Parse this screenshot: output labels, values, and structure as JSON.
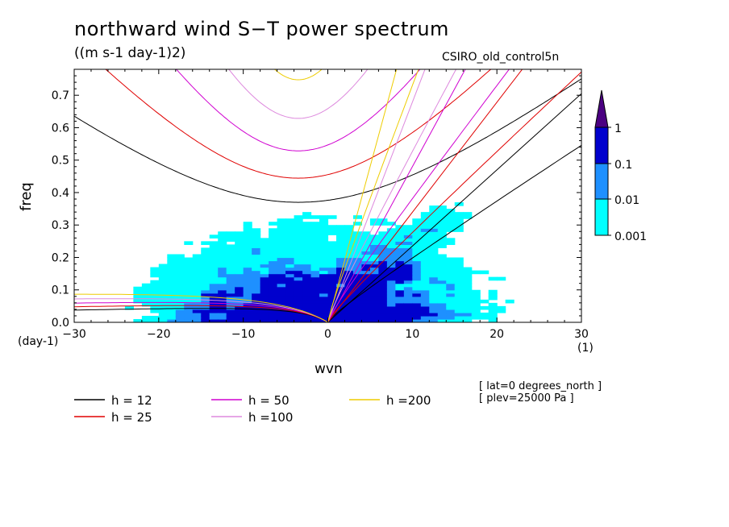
{
  "chart_data": {
    "type": "heatmap",
    "title": "northward wind S−T power spectrum",
    "subtitle": "((m s-1 day-1)2)",
    "run_name": "CSIRO_old_control5n",
    "xlabel": "wvn",
    "ylabel": "freq",
    "x_unit": "(day-1)",
    "y_unit": "(1)",
    "xlim": [
      -30,
      30
    ],
    "ylim": [
      0,
      0.78
    ],
    "x_ticks": [
      "−30",
      "−20",
      "−10",
      "0",
      "10",
      "20",
      "30"
    ],
    "x_tick_values": [
      -30,
      -20,
      -10,
      0,
      10,
      20,
      30
    ],
    "y_ticks": [
      "0.0",
      "0.1",
      "0.2",
      "0.3",
      "0.4",
      "0.5",
      "0.6",
      "0.7"
    ],
    "y_tick_values": [
      0,
      0.1,
      0.2,
      0.3,
      0.4,
      0.5,
      0.6,
      0.7
    ],
    "colorbar": {
      "levels": [
        "0.001",
        "0.01",
        "0.1",
        "1"
      ],
      "colors": [
        "#00ffff",
        "#1e90ff",
        "#0000cd",
        "#4b0082"
      ]
    },
    "dispersion_curves": [
      {
        "label": "h = 12",
        "h": 12,
        "color": "#000000"
      },
      {
        "label": "h = 25",
        "h": 25,
        "color": "#e00000"
      },
      {
        "label": "h = 50",
        "h": 50,
        "color": "#d000d0"
      },
      {
        "label": "h =100",
        "h": 100,
        "color": "#dd88dd"
      },
      {
        "label": "h =200",
        "h": 200,
        "color": "#eecc00"
      }
    ],
    "annotations": [
      "[ lat=0 degrees_north ]",
      "[ plev=25000 Pa ]"
    ]
  }
}
